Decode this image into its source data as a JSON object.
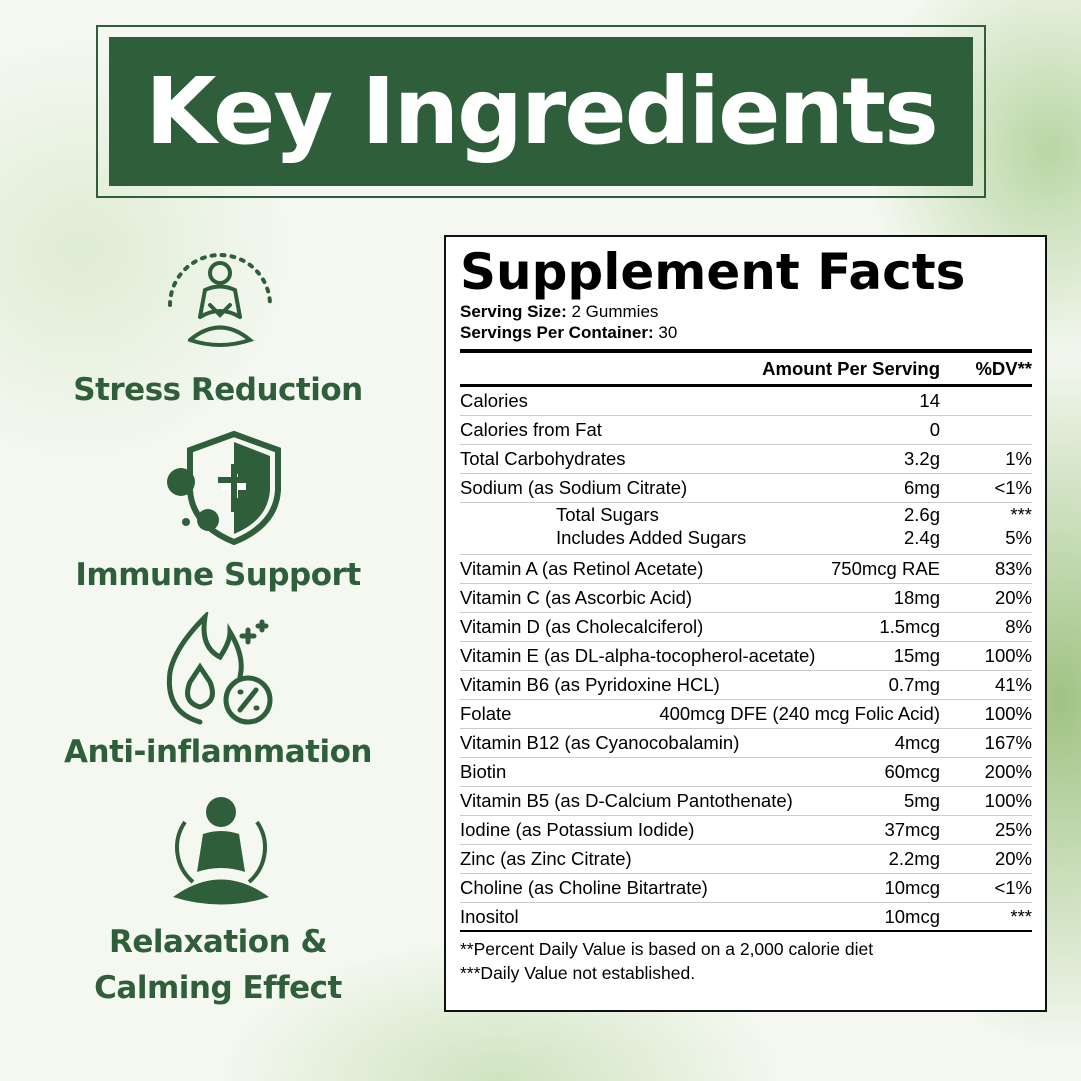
{
  "banner": {
    "title": "Key Ingredients"
  },
  "colors": {
    "brand_green": "#2f5f3a"
  },
  "features": [
    {
      "label": "Stress Reduction",
      "icon": "meditation-aura-icon"
    },
    {
      "label": "Immune Support",
      "icon": "shield-virus-icon"
    },
    {
      "label": "Anti-inflammation",
      "icon": "flame-drop-percent-icon"
    },
    {
      "label": "Relaxation &",
      "label2": "Calming Effect",
      "icon": "meditation-person-icon"
    }
  ],
  "facts": {
    "title": "Supplement Facts",
    "serving_size_label": "Serving Size:",
    "serving_size": "2 Gummies",
    "servings_label": "Servings Per Container:",
    "servings": "30",
    "col_amount": "Amount Per Serving",
    "col_dv": "%DV**",
    "rows": [
      {
        "name": "Calories",
        "amount": "14",
        "dv": ""
      },
      {
        "name": "Calories from Fat",
        "amount": "0",
        "dv": ""
      },
      {
        "name": "Total Carbohydrates",
        "amount": "3.2g",
        "dv": "1%"
      },
      {
        "name": "Sodium (as Sodium Citrate)",
        "amount": "6mg",
        "dv": "<1%"
      },
      {
        "name": "Total Sugars",
        "amount": "2.6g",
        "dv": "***",
        "sub_name": "Includes Added Sugars",
        "sub_amount": "2.4g",
        "sub_dv": "5%"
      },
      {
        "name": "Vitamin A (as Retinol Acetate)",
        "amount": "750mcg RAE",
        "dv": "83%"
      },
      {
        "name": "Vitamin C (as Ascorbic Acid)",
        "amount": "18mg",
        "dv": "20%"
      },
      {
        "name": "Vitamin D (as Cholecalciferol)",
        "amount": "1.5mcg",
        "dv": "8%"
      },
      {
        "name": "Vitamin E (as DL-alpha-tocopherol-acetate)",
        "amount": "15mg",
        "dv": "100%"
      },
      {
        "name": "Vitamin B6 (as Pyridoxine HCL)",
        "amount": "0.7mg",
        "dv": "41%"
      },
      {
        "name": "Folate",
        "amount": "400mcg DFE (240 mcg Folic Acid)",
        "dv": "100%"
      },
      {
        "name": "Vitamin B12 (as Cyanocobalamin)",
        "amount": "4mcg",
        "dv": "167%"
      },
      {
        "name": "Biotin",
        "amount": "60mcg",
        "dv": "200%"
      },
      {
        "name": "Vitamin B5 (as D-Calcium Pantothenate)",
        "amount": "5mg",
        "dv": "100%"
      },
      {
        "name": "Iodine (as Potassium Iodide)",
        "amount": "37mcg",
        "dv": "25%"
      },
      {
        "name": "Zinc (as Zinc Citrate)",
        "amount": "2.2mg",
        "dv": "20%"
      },
      {
        "name": "Choline (as Choline Bitartrate)",
        "amount": "10mcg",
        "dv": "<1%"
      },
      {
        "name": "Inositol",
        "amount": "10mcg",
        "dv": "***"
      }
    ],
    "footnote1": "**Percent Daily Value is based on a 2,000 calorie diet",
    "footnote2": "***Daily Value not established."
  }
}
